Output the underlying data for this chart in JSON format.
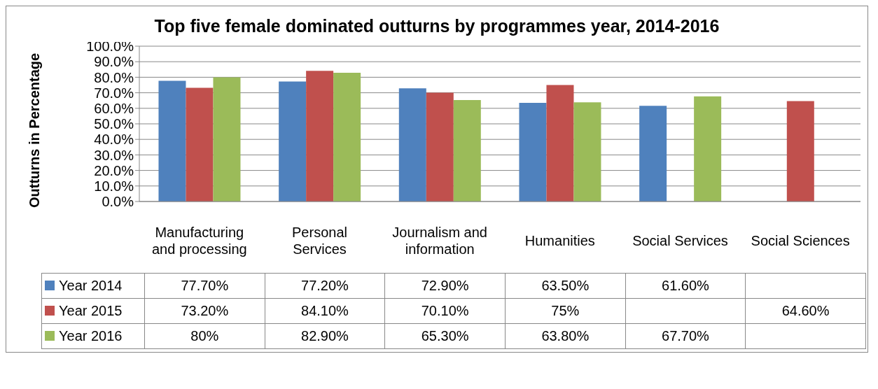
{
  "chart_data": {
    "type": "bar",
    "title": "Top five female dominated outturns by programmes year, 2014-2016",
    "ylabel": "Outturns in Percentage",
    "categories": [
      "Manufacturing and processing",
      "Personal Services",
      "Journalism and information",
      "Humanities",
      "Social Services",
      "Social Sciences"
    ],
    "series": [
      {
        "name": "Year 2014",
        "color": "#4f81bd",
        "values": [
          77.7,
          77.2,
          72.9,
          63.5,
          61.6,
          null
        ],
        "value_labels": [
          "77.70%",
          "77.20%",
          "72.90%",
          "63.50%",
          "61.60%",
          null
        ]
      },
      {
        "name": "Year 2015",
        "color": "#c0504d",
        "values": [
          73.2,
          84.1,
          70.1,
          75,
          null,
          64.6
        ],
        "value_labels": [
          "73.20%",
          "84.10%",
          "70.10%",
          "75%",
          null,
          "64.60%"
        ]
      },
      {
        "name": "Year 2016",
        "color": "#9bbb59",
        "values": [
          80,
          82.9,
          65.3,
          63.8,
          67.7,
          null
        ],
        "value_labels": [
          "80%",
          "82.90%",
          "65.30%",
          "63.80%",
          "67.70%",
          null
        ]
      }
    ],
    "ylim": [
      0,
      100
    ],
    "yticks": [
      {
        "value": 0,
        "label": "0.0%"
      },
      {
        "value": 10,
        "label": "10.0%"
      },
      {
        "value": 20,
        "label": "20.0%"
      },
      {
        "value": 30,
        "label": "30.0%"
      },
      {
        "value": 40,
        "label": "40.0%"
      },
      {
        "value": 50,
        "label": "50.0%"
      },
      {
        "value": 60,
        "label": "60.0%"
      },
      {
        "value": 70,
        "label": "70.0%"
      },
      {
        "value": 80,
        "label": "80.0%"
      },
      {
        "value": 90,
        "label": "90.0%"
      },
      {
        "value": 100,
        "label": "100.0%"
      }
    ],
    "grid": "y",
    "legend": "left"
  }
}
